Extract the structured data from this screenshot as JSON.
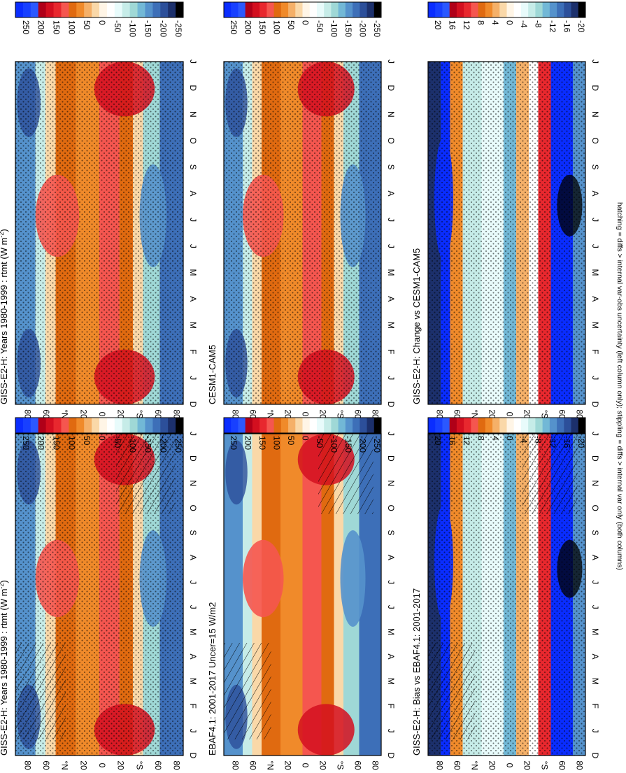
{
  "figure": {
    "footnote": "hatching = diffs > internal var-obs uncertainty (left column only); stippling = diffs > internal var only (both columns)",
    "palette_full": [
      "#0a2dff",
      "#2b58ff",
      "#d30f1f",
      "#e8282e",
      "#f5564f",
      "#e06a10",
      "#f08a2a",
      "#f5b068",
      "#fad8a8",
      "#fff5e6",
      "#ffffff",
      "#e8fbfb",
      "#c6ece8",
      "#9fd8d6",
      "#72b8d6",
      "#5592cc",
      "#3d6fb8",
      "#2c4f9a",
      "#1c306c",
      "#000000"
    ]
  },
  "chart_data": [
    {
      "type": "heatmap",
      "id": "top-left",
      "title": "GISS-E2-H: Years 1980-1999 : rtmt (W m",
      "title_sup": "-2",
      "title_close": ")",
      "x_tick_labels": [
        "D",
        "J",
        "F",
        "M",
        "A",
        "M",
        "J",
        "J",
        "A",
        "S",
        "O",
        "N",
        "D",
        "J"
      ],
      "y_tick_labels": [
        "80",
        "60",
        "°N",
        "20",
        "0",
        "20",
        "°S",
        "60",
        "80"
      ],
      "colorbar_labels": [
        "250",
        "200",
        "150",
        "100",
        "50",
        "0",
        "-50",
        "-100",
        "-150",
        "-200",
        "-250"
      ],
      "hatching": true,
      "stippling": true
    },
    {
      "type": "heatmap",
      "id": "top-right",
      "title": "GISS-E2-H: Years 1980-1999 : rtmt (W m",
      "title_sup": "-2",
      "title_close": ")",
      "x_tick_labels": [
        "D",
        "J",
        "F",
        "M",
        "A",
        "M",
        "J",
        "J",
        "A",
        "S",
        "O",
        "N",
        "D",
        "J"
      ],
      "y_tick_labels": [
        "80",
        "60",
        "°N",
        "20",
        "0",
        "20",
        "°S",
        "60",
        "80"
      ],
      "colorbar_labels": [
        "250",
        "200",
        "150",
        "100",
        "50",
        "0",
        "-50",
        "-100",
        "-150",
        "-200",
        "-250"
      ],
      "hatching": false,
      "stippling": true
    },
    {
      "type": "heatmap",
      "id": "mid-left",
      "title": "EBAF4.1: 2001-2017 Uncer=15 W/m2",
      "title_sup": "",
      "title_close": "",
      "x_tick_labels": [
        "D",
        "J",
        "F",
        "M",
        "A",
        "M",
        "J",
        "J",
        "A",
        "S",
        "O",
        "N",
        "D",
        "J"
      ],
      "y_tick_labels": [
        "80",
        "60",
        "°N",
        "20",
        "0",
        "20",
        "°S",
        "60",
        "80"
      ],
      "colorbar_labels": [
        "250",
        "200",
        "150",
        "100",
        "50",
        "0",
        "-50",
        "-100",
        "-150",
        "-200",
        "-250"
      ],
      "hatching": true,
      "stippling": false
    },
    {
      "type": "heatmap",
      "id": "mid-right",
      "title": "CESM1-CAM5",
      "title_sup": "",
      "title_close": "",
      "x_tick_labels": [
        "D",
        "J",
        "F",
        "M",
        "A",
        "M",
        "J",
        "J",
        "A",
        "S",
        "O",
        "N",
        "D",
        "J"
      ],
      "y_tick_labels": [
        "80",
        "60",
        "°N",
        "20",
        "0",
        "20",
        "°S",
        "60",
        "80"
      ],
      "colorbar_labels": [
        "250",
        "200",
        "150",
        "100",
        "50",
        "0",
        "-50",
        "-100",
        "-150",
        "-200",
        "-250"
      ],
      "hatching": false,
      "stippling": true
    },
    {
      "type": "heatmap",
      "id": "bot-left",
      "title": "GISS-E2-H: Bias vs EBAF4.1: 2001-2017",
      "title_sup": "",
      "title_close": "",
      "x_tick_labels": [
        "D",
        "J",
        "F",
        "M",
        "A",
        "M",
        "J",
        "J",
        "A",
        "S",
        "O",
        "N",
        "D",
        "J"
      ],
      "y_tick_labels": [
        "80",
        "60",
        "°N",
        "20",
        "0",
        "20",
        "°S",
        "60",
        "80"
      ],
      "colorbar_labels": [
        "20",
        "16",
        "12",
        "8",
        "4",
        "0",
        "-4",
        "-8",
        "-12",
        "-16",
        "-20"
      ],
      "hatching": true,
      "stippling": true
    },
    {
      "type": "heatmap",
      "id": "bot-right",
      "title": "GISS-E2-H: Change vs CESM1-CAM5",
      "title_sup": "",
      "title_close": "",
      "x_tick_labels": [
        "D",
        "J",
        "F",
        "M",
        "A",
        "M",
        "J",
        "J",
        "A",
        "S",
        "O",
        "N",
        "D",
        "J"
      ],
      "y_tick_labels": [
        "80",
        "60",
        "°N",
        "20",
        "0",
        "20",
        "°S",
        "60",
        "80"
      ],
      "colorbar_labels": [
        "20",
        "16",
        "12",
        "8",
        "4",
        "0",
        "-4",
        "-8",
        "-12",
        "-16",
        "-20"
      ],
      "hatching": false,
      "stippling": true
    }
  ]
}
